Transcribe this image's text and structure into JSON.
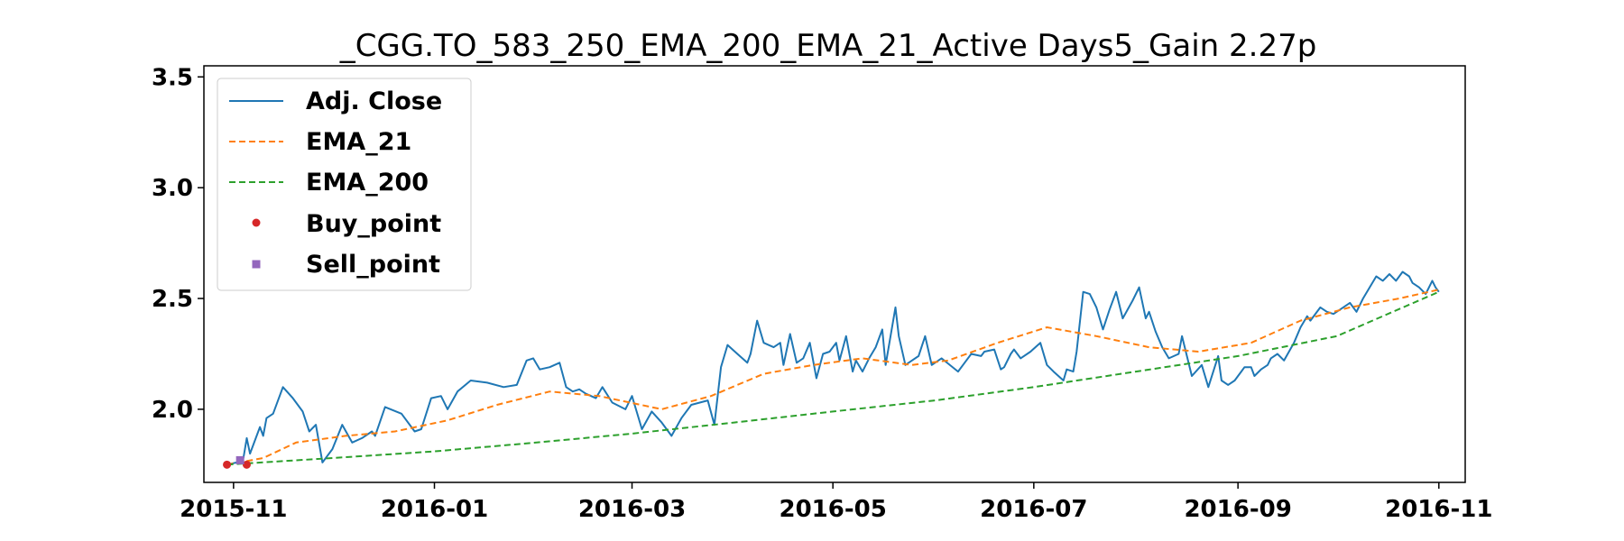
{
  "chart_data": {
    "type": "line",
    "title": "_CGG.TO_583_250_EMA_200_EMA_21_Active Days5_Gain   2.27p",
    "xlabel": "",
    "ylabel": "",
    "xlim": [
      "2015-10-23",
      "2016-11-09"
    ],
    "ylim": [
      1.67,
      3.55
    ],
    "x_ticks": [
      "2015-11",
      "2016-01",
      "2016-03",
      "2016-05",
      "2016-07",
      "2016-09",
      "2016-11"
    ],
    "y_ticks": [
      "2.0",
      "2.5",
      "3.0",
      "3.5"
    ],
    "grid": false,
    "legend": {
      "placement": "upper-left",
      "entries": [
        "Adj. Close",
        "EMA_21",
        "EMA_200",
        "Buy_point",
        "Sell_point"
      ]
    },
    "colors": {
      "Adj. Close": "#1f77b4",
      "EMA_21": "#ff7f0e",
      "EMA_200": "#2ca02c",
      "Buy_point": "#d62728",
      "Sell_point": "#9467bd"
    },
    "series": [
      {
        "name": "Adj. Close",
        "style": "solid",
        "points": [
          [
            "2015-10-30",
            1.75
          ],
          [
            "2015-11-02",
            1.76
          ],
          [
            "2015-11-03",
            1.77
          ],
          [
            "2015-11-04",
            1.78
          ],
          [
            "2015-11-05",
            1.87
          ],
          [
            "2015-11-06",
            1.8
          ],
          [
            "2015-11-09",
            1.92
          ],
          [
            "2015-11-10",
            1.88
          ],
          [
            "2015-11-11",
            1.96
          ],
          [
            "2015-11-13",
            1.98
          ],
          [
            "2015-11-16",
            2.1
          ],
          [
            "2015-11-19",
            2.05
          ],
          [
            "2015-11-22",
            1.99
          ],
          [
            "2015-11-24",
            1.9
          ],
          [
            "2015-11-26",
            1.93
          ],
          [
            "2015-11-28",
            1.76
          ],
          [
            "2015-12-01",
            1.82
          ],
          [
            "2015-12-04",
            1.93
          ],
          [
            "2015-12-07",
            1.85
          ],
          [
            "2015-12-10",
            1.87
          ],
          [
            "2015-12-13",
            1.9
          ],
          [
            "2015-12-14",
            1.88
          ],
          [
            "2015-12-17",
            2.01
          ],
          [
            "2015-12-22",
            1.98
          ],
          [
            "2015-12-26",
            1.9
          ],
          [
            "2015-12-28",
            1.91
          ],
          [
            "2015-12-31",
            2.05
          ],
          [
            "2016-01-03",
            2.06
          ],
          [
            "2016-01-05",
            2.0
          ],
          [
            "2016-01-08",
            2.08
          ],
          [
            "2016-01-12",
            2.13
          ],
          [
            "2016-01-17",
            2.12
          ],
          [
            "2016-01-22",
            2.1
          ],
          [
            "2016-01-26",
            2.11
          ],
          [
            "2016-01-29",
            2.22
          ],
          [
            "2016-01-31",
            2.23
          ],
          [
            "2016-02-02",
            2.18
          ],
          [
            "2016-02-05",
            2.19
          ],
          [
            "2016-02-08",
            2.21
          ],
          [
            "2016-02-10",
            2.1
          ],
          [
            "2016-02-12",
            2.08
          ],
          [
            "2016-02-14",
            2.09
          ],
          [
            "2016-02-16",
            2.07
          ],
          [
            "2016-02-19",
            2.05
          ],
          [
            "2016-02-21",
            2.1
          ],
          [
            "2016-02-24",
            2.03
          ],
          [
            "2016-02-28",
            2.0
          ],
          [
            "2016-03-01",
            2.06
          ],
          [
            "2016-03-04",
            1.91
          ],
          [
            "2016-03-07",
            1.99
          ],
          [
            "2016-03-10",
            1.94
          ],
          [
            "2016-03-13",
            1.88
          ],
          [
            "2016-03-16",
            1.96
          ],
          [
            "2016-03-19",
            2.02
          ],
          [
            "2016-03-24",
            2.04
          ],
          [
            "2016-03-26",
            1.93
          ],
          [
            "2016-03-28",
            2.19
          ],
          [
            "2016-03-30",
            2.29
          ],
          [
            "2016-04-02",
            2.25
          ],
          [
            "2016-04-05",
            2.21
          ],
          [
            "2016-04-06",
            2.25
          ],
          [
            "2016-04-08",
            2.4
          ],
          [
            "2016-04-10",
            2.3
          ],
          [
            "2016-04-13",
            2.28
          ],
          [
            "2016-04-15",
            2.3
          ],
          [
            "2016-04-16",
            2.2
          ],
          [
            "2016-04-18",
            2.34
          ],
          [
            "2016-04-20",
            2.21
          ],
          [
            "2016-04-22",
            2.23
          ],
          [
            "2016-04-24",
            2.3
          ],
          [
            "2016-04-26",
            2.14
          ],
          [
            "2016-04-28",
            2.25
          ],
          [
            "2016-04-30",
            2.26
          ],
          [
            "2016-05-02",
            2.3
          ],
          [
            "2016-05-03",
            2.22
          ],
          [
            "2016-05-05",
            2.33
          ],
          [
            "2016-05-07",
            2.17
          ],
          [
            "2016-05-08",
            2.22
          ],
          [
            "2016-05-10",
            2.17
          ],
          [
            "2016-05-12",
            2.23
          ],
          [
            "2016-05-14",
            2.28
          ],
          [
            "2016-05-16",
            2.36
          ],
          [
            "2016-05-17",
            2.2
          ],
          [
            "2016-05-20",
            2.46
          ],
          [
            "2016-05-21",
            2.33
          ],
          [
            "2016-05-23",
            2.2
          ],
          [
            "2016-05-25",
            2.22
          ],
          [
            "2016-05-27",
            2.24
          ],
          [
            "2016-05-29",
            2.33
          ],
          [
            "2016-05-31",
            2.2
          ],
          [
            "2016-06-03",
            2.23
          ],
          [
            "2016-06-08",
            2.17
          ],
          [
            "2016-06-10",
            2.21
          ],
          [
            "2016-06-12",
            2.25
          ],
          [
            "2016-06-15",
            2.24
          ],
          [
            "2016-06-16",
            2.26
          ],
          [
            "2016-06-19",
            2.27
          ],
          [
            "2016-06-21",
            2.18
          ],
          [
            "2016-06-22",
            2.19
          ],
          [
            "2016-06-24",
            2.25
          ],
          [
            "2016-06-25",
            2.27
          ],
          [
            "2016-06-27",
            2.23
          ],
          [
            "2016-06-30",
            2.26
          ],
          [
            "2016-07-03",
            2.3
          ],
          [
            "2016-07-05",
            2.2
          ],
          [
            "2016-07-07",
            2.17
          ],
          [
            "2016-07-10",
            2.13
          ],
          [
            "2016-07-11",
            2.18
          ],
          [
            "2016-07-13",
            2.17
          ],
          [
            "2016-07-14",
            2.26
          ],
          [
            "2016-07-16",
            2.53
          ],
          [
            "2016-07-18",
            2.52
          ],
          [
            "2016-07-20",
            2.46
          ],
          [
            "2016-07-22",
            2.36
          ],
          [
            "2016-07-24",
            2.45
          ],
          [
            "2016-07-26",
            2.53
          ],
          [
            "2016-07-28",
            2.41
          ],
          [
            "2016-07-31",
            2.49
          ],
          [
            "2016-08-02",
            2.55
          ],
          [
            "2016-08-04",
            2.41
          ],
          [
            "2016-08-05",
            2.44
          ],
          [
            "2016-08-07",
            2.35
          ],
          [
            "2016-08-09",
            2.28
          ],
          [
            "2016-08-11",
            2.23
          ],
          [
            "2016-08-14",
            2.25
          ],
          [
            "2016-08-15",
            2.33
          ],
          [
            "2016-08-18",
            2.15
          ],
          [
            "2016-08-21",
            2.2
          ],
          [
            "2016-08-23",
            2.1
          ],
          [
            "2016-08-26",
            2.24
          ],
          [
            "2016-08-27",
            2.13
          ],
          [
            "2016-08-29",
            2.11
          ],
          [
            "2016-08-31",
            2.13
          ],
          [
            "2016-09-02",
            2.17
          ],
          [
            "2016-09-03",
            2.19
          ],
          [
            "2016-09-05",
            2.19
          ],
          [
            "2016-09-06",
            2.15
          ],
          [
            "2016-09-08",
            2.18
          ],
          [
            "2016-09-10",
            2.2
          ],
          [
            "2016-09-11",
            2.23
          ],
          [
            "2016-09-13",
            2.25
          ],
          [
            "2016-09-15",
            2.22
          ],
          [
            "2016-09-18",
            2.3
          ],
          [
            "2016-09-20",
            2.37
          ],
          [
            "2016-09-22",
            2.42
          ],
          [
            "2016-09-23",
            2.4
          ],
          [
            "2016-09-26",
            2.46
          ],
          [
            "2016-09-28",
            2.44
          ],
          [
            "2016-09-30",
            2.43
          ],
          [
            "2016-10-02",
            2.45
          ],
          [
            "2016-10-05",
            2.48
          ],
          [
            "2016-10-07",
            2.44
          ],
          [
            "2016-10-09",
            2.5
          ],
          [
            "2016-10-11",
            2.55
          ],
          [
            "2016-10-13",
            2.6
          ],
          [
            "2016-10-15",
            2.58
          ],
          [
            "2016-10-17",
            2.61
          ],
          [
            "2016-10-19",
            2.58
          ],
          [
            "2016-10-21",
            2.62
          ],
          [
            "2016-10-23",
            2.6
          ],
          [
            "2016-10-24",
            2.57
          ],
          [
            "2016-10-26",
            2.55
          ],
          [
            "2016-10-28",
            2.52
          ],
          [
            "2016-10-30",
            2.58
          ],
          [
            "2016-10-31",
            2.55
          ],
          [
            "2016-11-01",
            2.53
          ]
        ]
      },
      {
        "name": "EMA_21",
        "style": "dashed",
        "points": [
          [
            "2015-10-30",
            1.75
          ],
          [
            "2015-11-10",
            1.78
          ],
          [
            "2015-11-20",
            1.85
          ],
          [
            "2015-12-05",
            1.88
          ],
          [
            "2015-12-20",
            1.9
          ],
          [
            "2016-01-05",
            1.95
          ],
          [
            "2016-01-20",
            2.02
          ],
          [
            "2016-02-05",
            2.08
          ],
          [
            "2016-02-20",
            2.06
          ],
          [
            "2016-03-10",
            2.0
          ],
          [
            "2016-03-25",
            2.06
          ],
          [
            "2016-04-10",
            2.16
          ],
          [
            "2016-04-25",
            2.2
          ],
          [
            "2016-05-10",
            2.23
          ],
          [
            "2016-05-25",
            2.2
          ],
          [
            "2016-06-05",
            2.22
          ],
          [
            "2016-06-20",
            2.3
          ],
          [
            "2016-07-05",
            2.37
          ],
          [
            "2016-07-20",
            2.33
          ],
          [
            "2016-08-05",
            2.28
          ],
          [
            "2016-08-20",
            2.26
          ],
          [
            "2016-09-05",
            2.3
          ],
          [
            "2016-09-20",
            2.4
          ],
          [
            "2016-10-05",
            2.46
          ],
          [
            "2016-10-20",
            2.5
          ],
          [
            "2016-11-01",
            2.54
          ]
        ]
      },
      {
        "name": "EMA_200",
        "style": "dashed",
        "points": [
          [
            "2015-10-30",
            1.75
          ],
          [
            "2015-12-01",
            1.78
          ],
          [
            "2016-01-01",
            1.81
          ],
          [
            "2016-02-01",
            1.85
          ],
          [
            "2016-03-01",
            1.89
          ],
          [
            "2016-04-01",
            1.94
          ],
          [
            "2016-05-01",
            1.99
          ],
          [
            "2016-06-01",
            2.04
          ],
          [
            "2016-07-01",
            2.1
          ],
          [
            "2016-08-01",
            2.17
          ],
          [
            "2016-09-01",
            2.24
          ],
          [
            "2016-10-01",
            2.33
          ],
          [
            "2016-11-01",
            2.53
          ]
        ]
      }
    ],
    "markers": [
      {
        "name": "Buy_point",
        "shape": "circle",
        "points": [
          [
            "2015-10-30",
            1.75
          ],
          [
            "2015-11-05",
            1.75
          ]
        ]
      },
      {
        "name": "Sell_point",
        "shape": "square",
        "points": [
          [
            "2015-11-03",
            1.77
          ]
        ]
      }
    ]
  }
}
